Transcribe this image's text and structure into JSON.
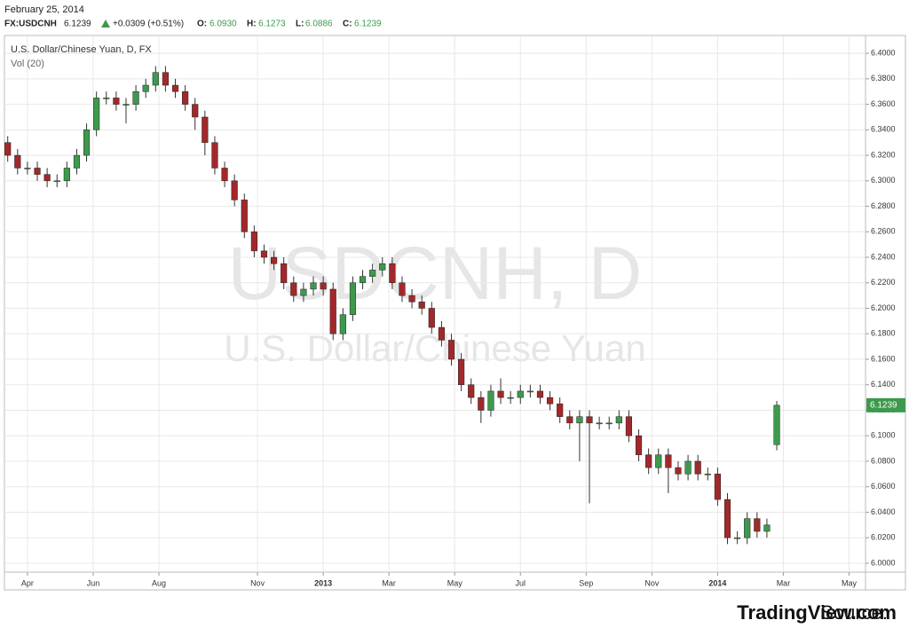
{
  "header": {
    "date": "February 25, 2014",
    "symbol": "FX:USDCNH",
    "price": "6.1239",
    "change": "+0.0309 (+0.51%)",
    "open_label": "O:",
    "open": "6.0930",
    "high_label": "H:",
    "high": "6.1273",
    "low_label": "L:",
    "low": "6.0886",
    "close_label": "C:",
    "close": "6.1239"
  },
  "chart_data": {
    "type": "candlestick",
    "title": "U.S. Dollar/Chinese Yuan, D, FX",
    "subtitle": "Vol (20)",
    "watermark": "USDCNH, D",
    "watermark_subtitle": "U.S. Dollar/Chinese Yuan",
    "up_color": "#3d9a4c",
    "down_color": "#a3282b",
    "grid": true,
    "last_price": 6.1239,
    "last_price_color": "#3d9a4c",
    "x": [
      2.4,
      2.7,
      3.0,
      3.3,
      3.6,
      3.9,
      4.2,
      4.5,
      4.8,
      5.1,
      5.4,
      5.7,
      6.0,
      6.3,
      6.6,
      6.9,
      7.2,
      7.5,
      7.8,
      8.1,
      8.4,
      8.7,
      9.0,
      9.3,
      9.6,
      9.9,
      10.2,
      10.5,
      10.8,
      11.1,
      11.4,
      11.7,
      12.0,
      12.3,
      12.6,
      12.9,
      13.2,
      13.5,
      13.8,
      14.1,
      14.4,
      14.7,
      15.0,
      15.3,
      15.6,
      15.9,
      16.2,
      16.5,
      16.8,
      17.1,
      17.4,
      17.7,
      18.0,
      18.3,
      18.6,
      18.9,
      19.2,
      19.5,
      19.8,
      20.1,
      20.4,
      20.7,
      21.0,
      21.3,
      21.6,
      21.9,
      22.2,
      22.5,
      22.8,
      23.1,
      23.4,
      23.7,
      24.0,
      24.3,
      24.6,
      24.9,
      25.2,
      25.5,
      25.8
    ],
    "open": [
      6.33,
      6.32,
      6.31,
      6.31,
      6.305,
      6.3,
      6.3,
      6.31,
      6.32,
      6.34,
      6.365,
      6.365,
      6.36,
      6.36,
      6.37,
      6.375,
      6.385,
      6.375,
      6.37,
      6.36,
      6.35,
      6.33,
      6.31,
      6.3,
      6.285,
      6.26,
      6.245,
      6.24,
      6.235,
      6.22,
      6.21,
      6.215,
      6.22,
      6.215,
      6.18,
      6.195,
      6.22,
      6.225,
      6.23,
      6.235,
      6.22,
      6.21,
      6.205,
      6.2,
      6.185,
      6.175,
      6.16,
      6.14,
      6.13,
      6.12,
      6.135,
      6.13,
      6.13,
      6.135,
      6.135,
      6.13,
      6.125,
      6.115,
      6.11,
      6.115,
      6.11,
      6.11,
      6.11,
      6.115,
      6.1,
      6.085,
      6.075,
      6.085,
      6.075,
      6.07,
      6.08,
      6.07,
      6.07,
      6.05,
      6.02,
      6.02,
      6.035,
      6.025,
      6.093
    ],
    "high": [
      6.335,
      6.325,
      6.315,
      6.315,
      6.31,
      6.305,
      6.315,
      6.325,
      6.345,
      6.37,
      6.37,
      6.37,
      6.365,
      6.375,
      6.38,
      6.39,
      6.39,
      6.38,
      6.375,
      6.365,
      6.355,
      6.335,
      6.315,
      6.305,
      6.29,
      6.265,
      6.25,
      6.245,
      6.24,
      6.225,
      6.22,
      6.225,
      6.225,
      6.22,
      6.2,
      6.225,
      6.23,
      6.235,
      6.24,
      6.24,
      6.225,
      6.215,
      6.21,
      6.205,
      6.19,
      6.18,
      6.165,
      6.145,
      6.135,
      6.14,
      6.145,
      6.135,
      6.14,
      6.14,
      6.14,
      6.135,
      6.13,
      6.12,
      6.12,
      6.12,
      6.115,
      6.115,
      6.12,
      6.12,
      6.105,
      6.09,
      6.09,
      6.09,
      6.08,
      6.085,
      6.085,
      6.075,
      6.075,
      6.055,
      6.025,
      6.04,
      6.04,
      6.035,
      6.1273
    ],
    "low": [
      6.315,
      6.305,
      6.305,
      6.3,
      6.295,
      6.295,
      6.295,
      6.305,
      6.315,
      6.335,
      6.36,
      6.355,
      6.345,
      6.355,
      6.365,
      6.37,
      6.37,
      6.365,
      6.355,
      6.34,
      6.32,
      6.305,
      6.295,
      6.28,
      6.255,
      6.24,
      6.235,
      6.23,
      6.215,
      6.205,
      6.205,
      6.21,
      6.21,
      6.175,
      6.175,
      6.19,
      6.215,
      6.22,
      6.225,
      6.215,
      6.205,
      6.2,
      6.195,
      6.18,
      6.17,
      6.155,
      6.135,
      6.125,
      6.11,
      6.115,
      6.125,
      6.125,
      6.125,
      6.13,
      6.125,
      6.12,
      6.11,
      6.105,
      6.08,
      6.047,
      6.105,
      6.105,
      6.105,
      6.095,
      6.08,
      6.07,
      6.07,
      6.055,
      6.065,
      6.065,
      6.065,
      6.065,
      6.045,
      6.015,
      6.015,
      6.015,
      6.02,
      6.02,
      6.0886
    ],
    "close": [
      6.32,
      6.31,
      6.31,
      6.305,
      6.3,
      6.3,
      6.31,
      6.32,
      6.34,
      6.365,
      6.365,
      6.36,
      6.36,
      6.37,
      6.375,
      6.385,
      6.375,
      6.37,
      6.36,
      6.35,
      6.33,
      6.31,
      6.3,
      6.285,
      6.26,
      6.245,
      6.24,
      6.235,
      6.22,
      6.21,
      6.215,
      6.22,
      6.215,
      6.18,
      6.195,
      6.22,
      6.225,
      6.23,
      6.235,
      6.22,
      6.21,
      6.205,
      6.2,
      6.185,
      6.175,
      6.16,
      6.14,
      6.13,
      6.12,
      6.135,
      6.13,
      6.13,
      6.135,
      6.135,
      6.13,
      6.125,
      6.115,
      6.11,
      6.115,
      6.11,
      6.11,
      6.11,
      6.115,
      6.1,
      6.085,
      6.075,
      6.085,
      6.075,
      6.07,
      6.08,
      6.07,
      6.07,
      6.05,
      6.02,
      6.02,
      6.035,
      6.025,
      6.03,
      6.1239
    ],
    "xlim": [
      2.3,
      28.5
    ],
    "xticks": [
      {
        "value": 3,
        "label": "Apr"
      },
      {
        "value": 5,
        "label": "Jun"
      },
      {
        "value": 7,
        "label": "Aug"
      },
      {
        "value": 10,
        "label": "Nov"
      },
      {
        "value": 12,
        "label": "2013"
      },
      {
        "value": 14,
        "label": "Mar"
      },
      {
        "value": 16,
        "label": "May"
      },
      {
        "value": 18,
        "label": "Jul"
      },
      {
        "value": 20,
        "label": "Sep"
      },
      {
        "value": 22,
        "label": "Nov"
      },
      {
        "value": 24,
        "label": "2014"
      },
      {
        "value": 26,
        "label": "Mar"
      },
      {
        "value": 28,
        "label": "May"
      }
    ],
    "ylim": [
      5.993,
      6.414
    ],
    "yticks": [
      {
        "value": 6.0,
        "label": "6.0000"
      },
      {
        "value": 6.02,
        "label": "6.0200"
      },
      {
        "value": 6.04,
        "label": "6.0400"
      },
      {
        "value": 6.06,
        "label": "6.0600"
      },
      {
        "value": 6.08,
        "label": "6.0800"
      },
      {
        "value": 6.1,
        "label": "6.1000"
      },
      {
        "value": 6.12,
        "label": "6.1200"
      },
      {
        "value": 6.14,
        "label": "6.1400"
      },
      {
        "value": 6.16,
        "label": "6.1600"
      },
      {
        "value": 6.18,
        "label": "6.1800"
      },
      {
        "value": 6.2,
        "label": "6.2000"
      },
      {
        "value": 6.22,
        "label": "6.2200"
      },
      {
        "value": 6.24,
        "label": "6.2400"
      },
      {
        "value": 6.26,
        "label": "6.2600"
      },
      {
        "value": 6.28,
        "label": "6.2800"
      },
      {
        "value": 6.3,
        "label": "6.3000"
      },
      {
        "value": 6.32,
        "label": "6.3200"
      },
      {
        "value": 6.34,
        "label": "6.3400"
      },
      {
        "value": 6.36,
        "label": "6.3600"
      },
      {
        "value": 6.38,
        "label": "6.3800"
      },
      {
        "value": 6.4,
        "label": "6.4000"
      }
    ]
  },
  "footer": {
    "source_label": "Source:",
    "source_name": "TradingView.com"
  }
}
